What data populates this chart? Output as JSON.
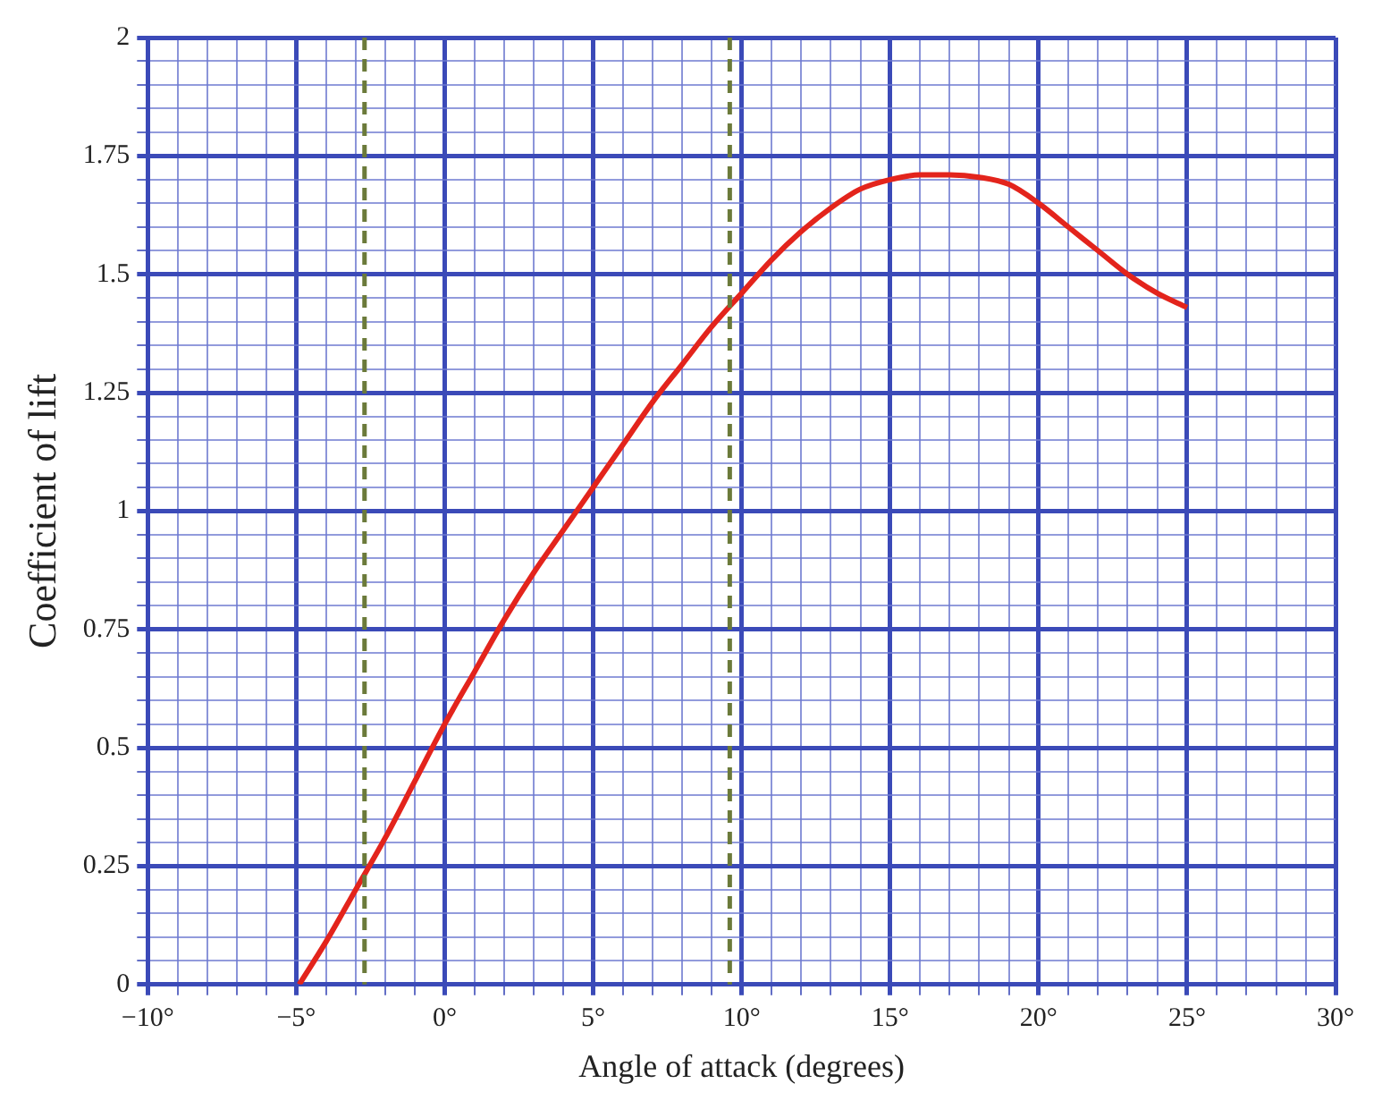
{
  "chart_data": {
    "type": "line",
    "xlabel": "Angle of attack (degrees)",
    "ylabel": "Coefficient of lift",
    "x": [
      -4.9,
      -4,
      -3,
      -2,
      -1,
      0,
      1,
      2,
      3,
      4,
      5,
      6,
      7,
      8,
      9,
      10,
      11,
      12,
      13,
      14,
      15,
      16,
      17,
      18,
      19,
      20,
      21,
      22,
      23,
      24,
      25
    ],
    "series": [
      {
        "color": "#e3241c",
        "values": [
          0,
          0.09,
          0.2,
          0.31,
          0.43,
          0.55,
          0.66,
          0.77,
          0.87,
          0.96,
          1.05,
          1.14,
          1.23,
          1.31,
          1.39,
          1.46,
          1.53,
          1.59,
          1.64,
          1.68,
          1.7,
          1.71,
          1.71,
          1.705,
          1.69,
          1.65,
          1.6,
          1.55,
          1.5,
          1.46,
          1.43
        ]
      }
    ],
    "xlim": [
      -10,
      30
    ],
    "ylim": [
      0,
      2
    ],
    "xticks": [
      {
        "value": -10,
        "label": "−10°"
      },
      {
        "value": -9,
        "label": null
      },
      {
        "value": -8,
        "label": null
      },
      {
        "value": -7,
        "label": null
      },
      {
        "value": -6,
        "label": null
      },
      {
        "value": -5,
        "label": "−5°"
      },
      {
        "value": -4,
        "label": null
      },
      {
        "value": -3,
        "label": null
      },
      {
        "value": -2,
        "label": null
      },
      {
        "value": -1,
        "label": null
      },
      {
        "value": 0,
        "label": "0°"
      },
      {
        "value": 1,
        "label": null
      },
      {
        "value": 2,
        "label": null
      },
      {
        "value": 3,
        "label": null
      },
      {
        "value": 4,
        "label": null
      },
      {
        "value": 5,
        "label": "5°"
      },
      {
        "value": 6,
        "label": null
      },
      {
        "value": 7,
        "label": null
      },
      {
        "value": 8,
        "label": null
      },
      {
        "value": 9,
        "label": null
      },
      {
        "value": 10,
        "label": "10°"
      },
      {
        "value": 11,
        "label": null
      },
      {
        "value": 12,
        "label": null
      },
      {
        "value": 13,
        "label": null
      },
      {
        "value": 14,
        "label": null
      },
      {
        "value": 15,
        "label": "15°"
      },
      {
        "value": 16,
        "label": null
      },
      {
        "value": 17,
        "label": null
      },
      {
        "value": 18,
        "label": null
      },
      {
        "value": 19,
        "label": null
      },
      {
        "value": 20,
        "label": "20°"
      },
      {
        "value": 21,
        "label": null
      },
      {
        "value": 22,
        "label": null
      },
      {
        "value": 23,
        "label": null
      },
      {
        "value": 24,
        "label": null
      },
      {
        "value": 25,
        "label": "25°"
      },
      {
        "value": 26,
        "label": null
      },
      {
        "value": 27,
        "label": null
      },
      {
        "value": 28,
        "label": null
      },
      {
        "value": 29,
        "label": null
      },
      {
        "value": 30,
        "label": "30°"
      }
    ],
    "yticks": [
      0,
      {
        "value": 0.05,
        "label": null
      },
      {
        "value": 0.1,
        "label": null
      },
      {
        "value": 0.15,
        "label": null
      },
      {
        "value": 0.2,
        "label": null
      },
      0.25,
      {
        "value": 0.3,
        "label": null
      },
      {
        "value": 0.35,
        "label": null
      },
      {
        "value": 0.4,
        "label": null
      },
      {
        "value": 0.45,
        "label": null
      },
      0.5,
      {
        "value": 0.55,
        "label": null
      },
      {
        "value": 0.6,
        "label": null
      },
      {
        "value": 0.65,
        "label": null
      },
      {
        "value": 0.7,
        "label": null
      },
      0.75,
      {
        "value": 0.8,
        "label": null
      },
      {
        "value": 0.85,
        "label": null
      },
      {
        "value": 0.9,
        "label": null
      },
      {
        "value": 0.95,
        "label": null
      },
      1,
      {
        "value": 1.05,
        "label": null
      },
      {
        "value": 1.1,
        "label": null
      },
      {
        "value": 1.15,
        "label": null
      },
      {
        "value": 1.2,
        "label": null
      },
      1.25,
      {
        "value": 1.3,
        "label": null
      },
      {
        "value": 1.35,
        "label": null
      },
      {
        "value": 1.4,
        "label": null
      },
      {
        "value": 1.45,
        "label": null
      },
      1.5,
      {
        "value": 1.55,
        "label": null
      },
      {
        "value": 1.6,
        "label": null
      },
      {
        "value": 1.65,
        "label": null
      },
      {
        "value": 1.7,
        "label": null
      },
      1.75,
      {
        "value": 1.8,
        "label": null
      },
      {
        "value": 1.85,
        "label": null
      },
      {
        "value": 1.9,
        "label": null
      },
      {
        "value": 1.95,
        "label": null
      },
      2
    ],
    "ref_lines": [
      {
        "axis": "x",
        "value": -2.7,
        "color": "#6b7a3a",
        "line_style": "dashed"
      },
      {
        "axis": "x",
        "value": 9.6,
        "color": "#6b7a3a",
        "line_style": "dashed"
      }
    ],
    "grid": true,
    "legend": false,
    "marker": "none",
    "line_style": "solid"
  }
}
